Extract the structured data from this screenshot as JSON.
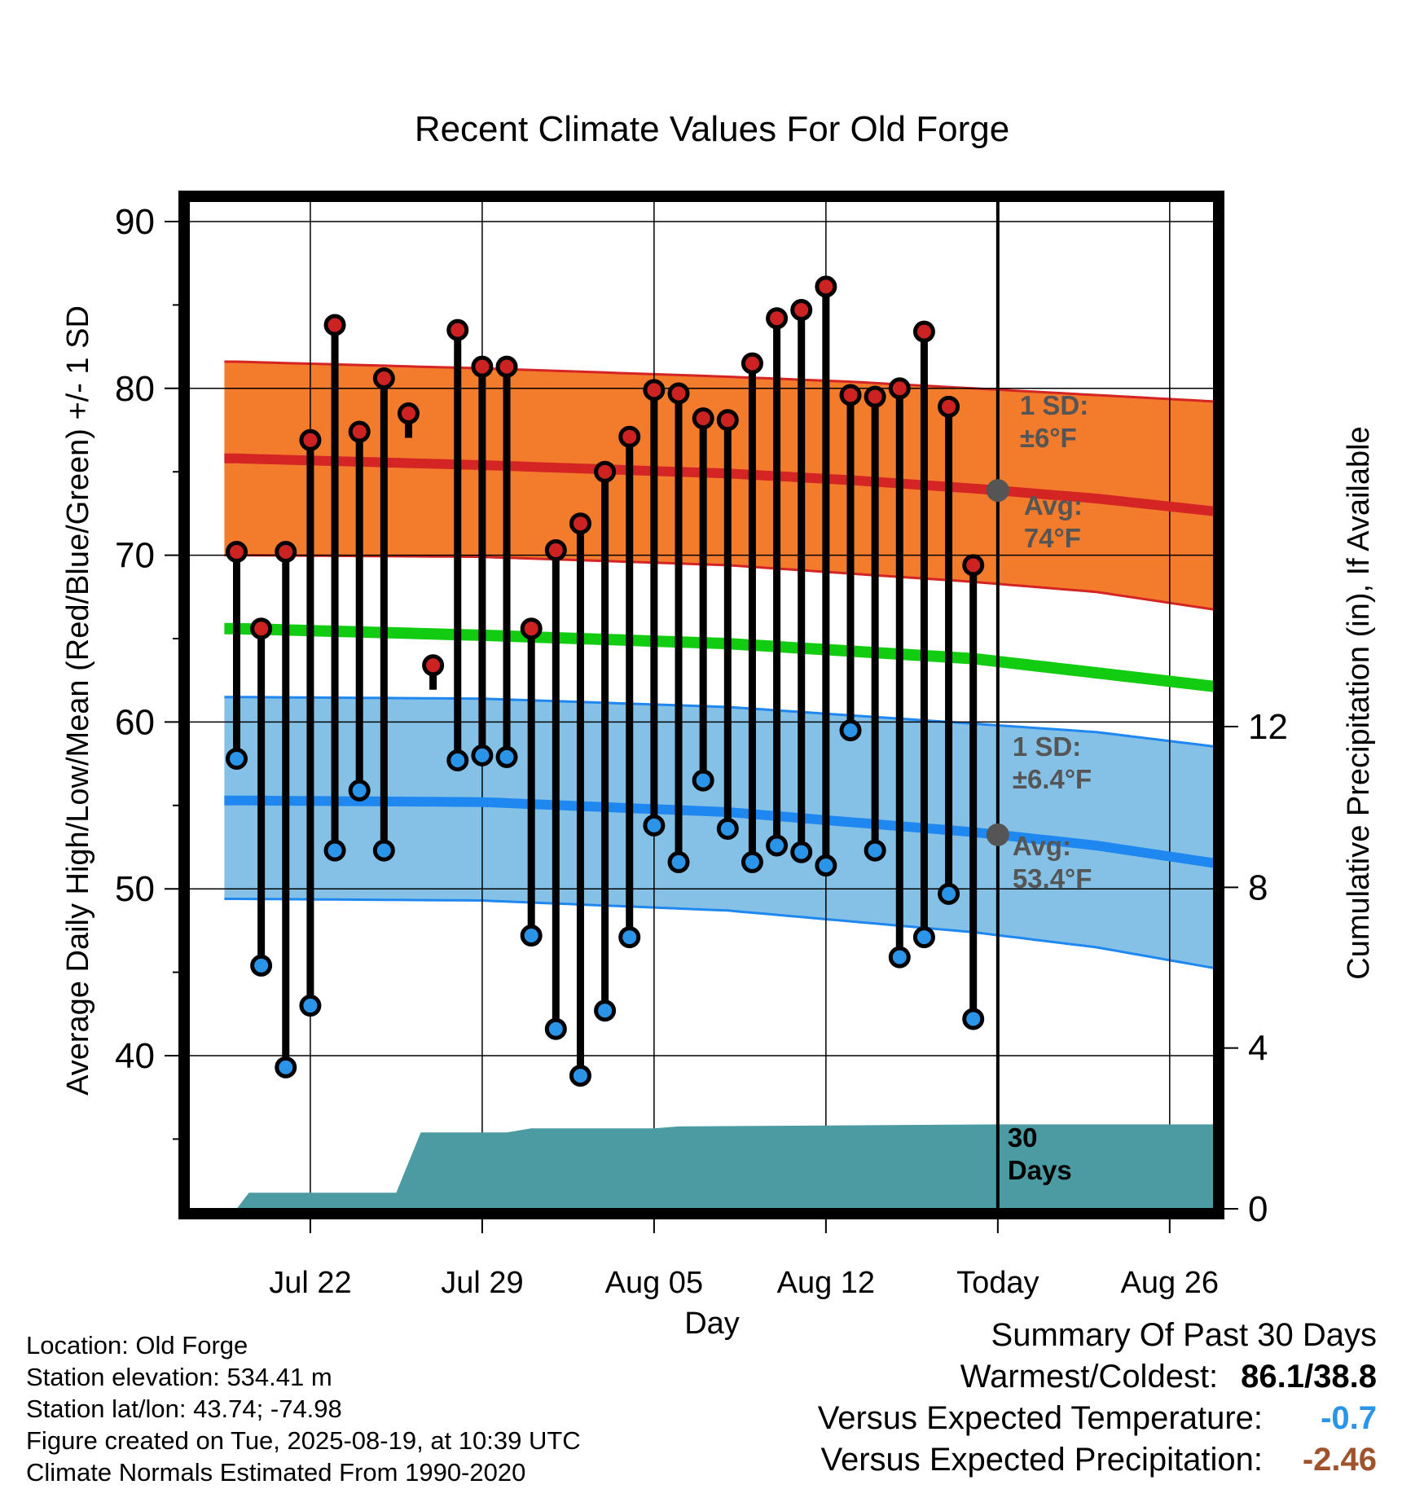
{
  "chart_data": {
    "type": "line",
    "title": "Recent Climate Values For Old Forge",
    "xlabel": "Day",
    "ylabel": "Average Daily High/Low/Mean (Red/Blue/Green) +/- 1 SD",
    "y2label": "Cumulative Precipitation (in), If Available",
    "ylim": [
      31,
      92
    ],
    "y2lim": [
      0,
      22
    ],
    "yticks": [
      40,
      50,
      60,
      70,
      80,
      90
    ],
    "y2ticks": [
      0,
      4,
      8,
      12
    ],
    "x_tick_labels": [
      "Jul 22",
      "Jul 29",
      "Aug 05",
      "Aug 12",
      "Today",
      "Aug 26"
    ],
    "x_tick_days": [
      3,
      10,
      17,
      24,
      31,
      38
    ],
    "xlim": [
      -0.5,
      40
    ],
    "grid": true,
    "today_day": 31,
    "x_day_reference": "day index 0 = Jul 19",
    "daily_high": [
      70.2,
      65.6,
      70.2,
      76.9,
      83.8,
      77.4,
      80.6,
      78.5,
      63.4,
      83.5,
      81.3,
      81.3,
      65.6,
      70.3,
      71.9,
      75.0,
      77.1,
      79.9,
      79.7,
      78.2,
      78.1,
      81.5,
      84.2,
      84.7,
      86.1,
      79.6,
      79.5,
      80.0,
      83.4,
      78.9,
      69.4
    ],
    "daily_low": [
      57.8,
      45.4,
      39.3,
      43.0,
      52.3,
      55.9,
      52.3,
      null,
      null,
      57.7,
      58.0,
      57.9,
      47.2,
      41.6,
      38.8,
      42.7,
      47.1,
      53.8,
      51.6,
      56.5,
      53.6,
      51.6,
      52.6,
      52.2,
      51.4,
      59.5,
      52.3,
      45.9,
      47.1,
      49.7,
      42.2
    ],
    "normal_high": {
      "days": [
        0,
        10,
        20,
        25,
        30,
        35,
        40
      ],
      "avg": [
        75.8,
        75.4,
        74.9,
        74.5,
        74.0,
        73.4,
        72.6
      ],
      "upper": [
        81.6,
        81.2,
        80.7,
        80.4,
        80.0,
        79.6,
        79.2
      ],
      "lower": [
        70.0,
        69.9,
        69.4,
        68.9,
        68.4,
        67.8,
        66.7
      ]
    },
    "normal_mean": {
      "days": [
        0,
        10,
        20,
        30,
        40
      ],
      "avg": [
        65.6,
        65.2,
        64.7,
        63.8,
        62.1
      ]
    },
    "normal_low": {
      "days": [
        0,
        10,
        20,
        30,
        35,
        40
      ],
      "avg": [
        55.3,
        55.2,
        54.6,
        53.4,
        52.6,
        51.5
      ],
      "upper": [
        61.5,
        61.4,
        60.9,
        59.9,
        59.4,
        58.5
      ],
      "lower": [
        49.4,
        49.3,
        48.7,
        47.4,
        46.5,
        45.2
      ]
    },
    "precipitation": {
      "days": [
        0,
        0.5,
        6.5,
        7.5,
        11,
        12,
        17,
        18,
        31,
        40
      ],
      "values": [
        0.0,
        0.4,
        0.4,
        1.9,
        1.9,
        2.0,
        2.0,
        2.05,
        2.1,
        2.1
      ]
    },
    "annotations": {
      "high_sd": [
        "1 SD:",
        "±6°F"
      ],
      "high_avg": [
        "Avg:",
        "74°F"
      ],
      "low_sd": [
        "1 SD:",
        "±6.4°F"
      ],
      "low_avg": [
        "Avg:",
        "53.4°F"
      ],
      "days_label": [
        "30",
        "Days"
      ]
    },
    "colors": {
      "high_band": "#f27b2c",
      "high_line": "#d42424",
      "low_band": "#85c1e6",
      "low_line": "#1e88f0",
      "mean_line": "#11cc11",
      "precip": "#4a9ba2",
      "high_point": "#cc2222",
      "low_point": "#2a94e8",
      "annotation_text": "#555555"
    }
  },
  "info": {
    "location": "Location: Old Forge",
    "elevation": "Station elevation: 534.41 m",
    "latlon": "Station lat/lon: 43.74; -74.98",
    "created": "Figure created on Tue, 2025-08-19, at 10:39 UTC",
    "normals": "Climate Normals Estimated From 1990-2020"
  },
  "summary": {
    "title": "Summary Of Past 30 Days",
    "warm_cold_label": "Warmest/Coldest:",
    "warm_cold_value": "86.1/38.8",
    "temp_label": "Versus Expected Temperature:",
    "temp_value": "-0.7",
    "temp_color": "#2a94e8",
    "precip_label": "Versus Expected Precipitation:",
    "precip_value": "-2.46",
    "precip_color": "#a0522d"
  }
}
